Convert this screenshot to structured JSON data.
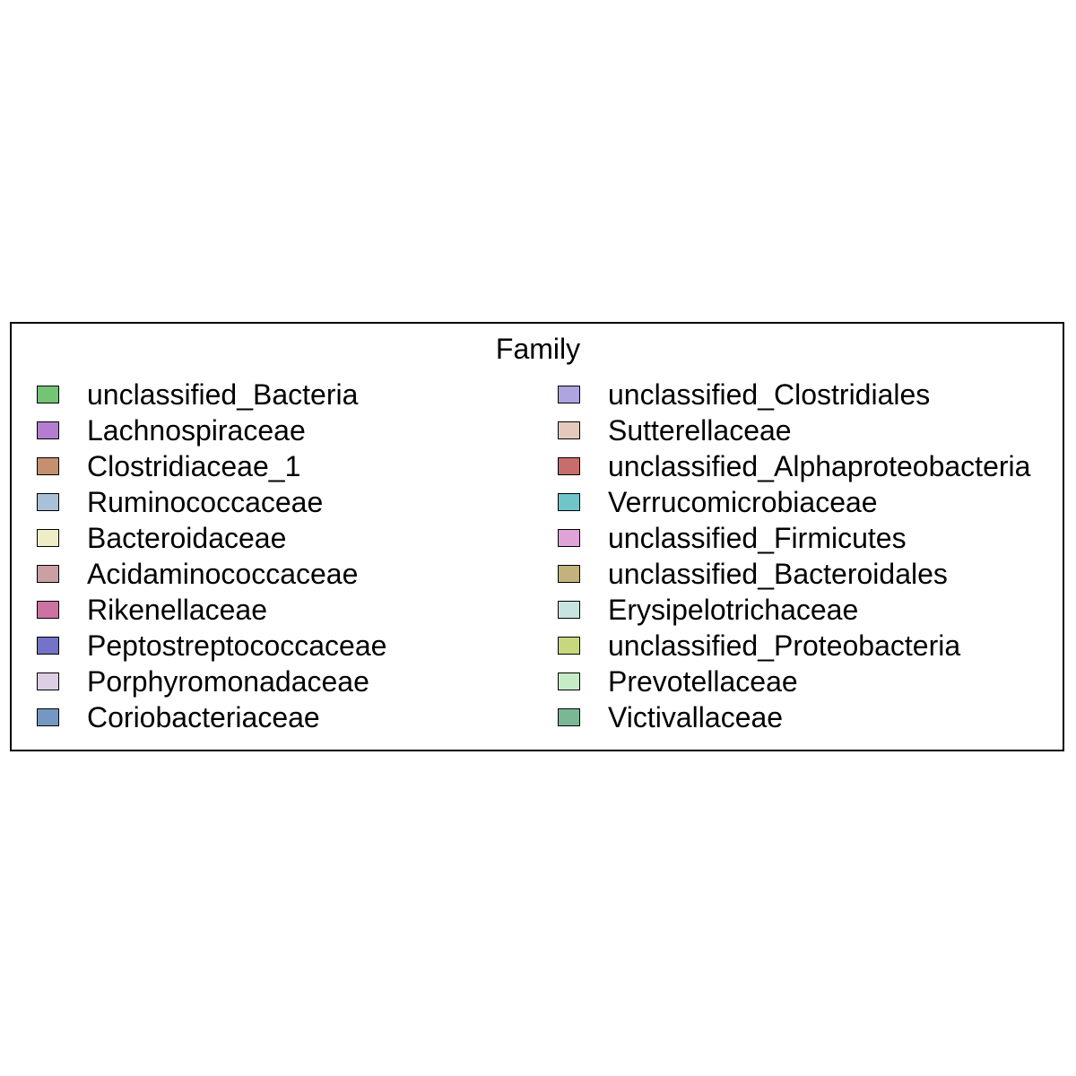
{
  "chart_data": {
    "type": "legend",
    "title": "Family",
    "columns": 2,
    "entries": [
      {
        "label": "unclassified_Bacteria",
        "color": "#74c476"
      },
      {
        "label": "Lachnospiraceae",
        "color": "#b57dd1"
      },
      {
        "label": "Clostridiaceae_1",
        "color": "#c4906f"
      },
      {
        "label": "Ruminococcaceae",
        "color": "#a9c0d6"
      },
      {
        "label": "Bacteroidaceae",
        "color": "#eeedc8"
      },
      {
        "label": "Acidaminococcaceae",
        "color": "#c9a0a3"
      },
      {
        "label": "Rikenellaceae",
        "color": "#cc73a4"
      },
      {
        "label": "Peptostreptococcaceae",
        "color": "#7373c9"
      },
      {
        "label": "Porphyromonadaceae",
        "color": "#dccfe4"
      },
      {
        "label": "Coriobacteriaceae",
        "color": "#7498c3"
      },
      {
        "label": "unclassified_Clostridiales",
        "color": "#ada4e0"
      },
      {
        "label": "Sutterellaceae",
        "color": "#e6c9bd"
      },
      {
        "label": "unclassified_Alphaproteobacteria",
        "color": "#c86d6d"
      },
      {
        "label": "Verrucomicrobiaceae",
        "color": "#6ec6c9"
      },
      {
        "label": "unclassified_Firmicutes",
        "color": "#dfa3d8"
      },
      {
        "label": "unclassified_Bacteroidales",
        "color": "#c4b27e"
      },
      {
        "label": "Erysipelotrichaceae",
        "color": "#c6e5e1"
      },
      {
        "label": "unclassified_Proteobacteria",
        "color": "#c6d87c"
      },
      {
        "label": "Prevotellaceae",
        "color": "#c5ecc6"
      },
      {
        "label": "Victivallaceae",
        "color": "#7ab895"
      }
    ]
  }
}
